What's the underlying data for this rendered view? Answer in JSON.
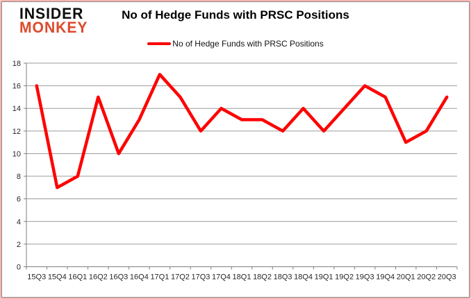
{
  "logo": {
    "line1": "INSIDER",
    "line2": "MONKEY"
  },
  "header": {
    "title": "No of Hedge Funds with PRSC Positions"
  },
  "legend": {
    "label": "No of Hedge Funds with PRSC Positions"
  },
  "colors": {
    "line": "#fe0000",
    "grid": "#9b9b9b",
    "axis": "#7f7f7f",
    "tick_text": "#262626",
    "logo_black": "#0d0d0d",
    "logo_red": "#dd4a2c",
    "border_glow": "#e43023"
  },
  "chart_data": {
    "type": "line",
    "title": "No of Hedge Funds with PRSC Positions",
    "series_name": "No of Hedge Funds with PRSC Positions",
    "categories": [
      "15Q3",
      "15Q4",
      "16Q1",
      "16Q2",
      "16Q3",
      "16Q4",
      "17Q1",
      "17Q2",
      "17Q3",
      "17Q4",
      "18Q1",
      "18Q2",
      "18Q3",
      "18Q4",
      "19Q1",
      "19Q2",
      "19Q3",
      "19Q4",
      "20Q1",
      "20Q2",
      "20Q3"
    ],
    "values": [
      16,
      7,
      8,
      15,
      10,
      13,
      17,
      15,
      12,
      14,
      13,
      13,
      12,
      14,
      12,
      14,
      16,
      15,
      11,
      12,
      15
    ],
    "xlabel": "",
    "ylabel": "",
    "ylim": [
      0,
      18
    ],
    "yticks": [
      0,
      2,
      4,
      6,
      8,
      10,
      12,
      14,
      16,
      18
    ],
    "grid": true,
    "legend_position": "top"
  }
}
